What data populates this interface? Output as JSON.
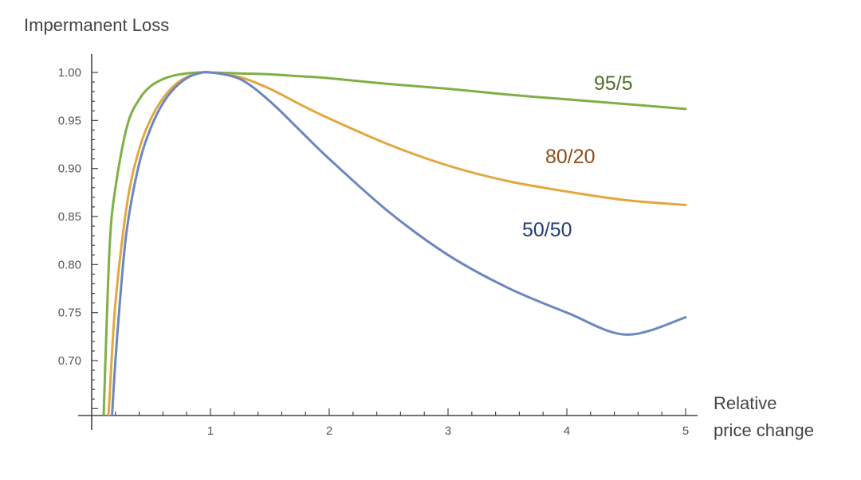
{
  "chart_data": {
    "type": "line",
    "ylabel": "Impermanent Loss",
    "xlabel_lines": [
      "Relative",
      "price change"
    ],
    "xlim": [
      0,
      5
    ],
    "ylim": [
      0.64,
      1.02
    ],
    "x_ticks": [
      1,
      2,
      3,
      4,
      5
    ],
    "y_ticks": [
      0.7,
      0.75,
      0.8,
      0.85,
      0.9,
      0.95,
      1.0
    ],
    "y_tick_labels": [
      "0.70",
      "0.75",
      "0.80",
      "0.85",
      "0.90",
      "0.95",
      "1.00"
    ],
    "grid": false,
    "legend": "inline labels at right",
    "series": [
      {
        "name": "95/5",
        "color": "#7FAF45",
        "label_color": "#4F6F2D",
        "x": [
          0.1,
          0.15,
          0.2,
          0.3,
          0.4,
          0.5,
          0.6,
          0.7,
          0.8,
          0.9,
          1.0,
          1.25,
          1.5,
          1.75,
          2.0,
          2.5,
          3.0,
          3.5,
          4.0,
          4.5,
          5.0
        ],
        "values": [
          0.64,
          0.815,
          0.88,
          0.945,
          0.972,
          0.986,
          0.993,
          0.997,
          0.999,
          1.0,
          1.0,
          0.999,
          0.998,
          0.996,
          0.994,
          0.988,
          0.983,
          0.977,
          0.972,
          0.967,
          0.962
        ]
      },
      {
        "name": "80/20",
        "color": "#E3A73F",
        "label_color": "#8E4E1C",
        "x": [
          0.14,
          0.15,
          0.2,
          0.3,
          0.4,
          0.5,
          0.6,
          0.7,
          0.8,
          0.9,
          1.0,
          1.25,
          1.5,
          1.75,
          2.0,
          2.5,
          3.0,
          3.5,
          4.0,
          4.5,
          5.0
        ],
        "values": [
          0.64,
          0.66,
          0.76,
          0.865,
          0.92,
          0.952,
          0.973,
          0.987,
          0.995,
          0.999,
          1.0,
          0.995,
          0.983,
          0.967,
          0.952,
          0.925,
          0.903,
          0.887,
          0.876,
          0.867,
          0.862
        ]
      },
      {
        "name": "50/50",
        "color": "#6C86C0",
        "label_color": "#233A78",
        "x": [
          0.17,
          0.2,
          0.25,
          0.3,
          0.4,
          0.5,
          0.6,
          0.7,
          0.8,
          0.9,
          1.0,
          1.25,
          1.5,
          1.75,
          2.0,
          2.5,
          3.0,
          3.5,
          4.0,
          4.5,
          5.0
        ],
        "values": [
          0.64,
          0.7,
          0.78,
          0.84,
          0.905,
          0.943,
          0.968,
          0.984,
          0.994,
          0.999,
          1.0,
          0.993,
          0.97,
          0.94,
          0.91,
          0.855,
          0.81,
          0.776,
          0.75,
          0.727,
          0.745
        ]
      }
    ]
  }
}
